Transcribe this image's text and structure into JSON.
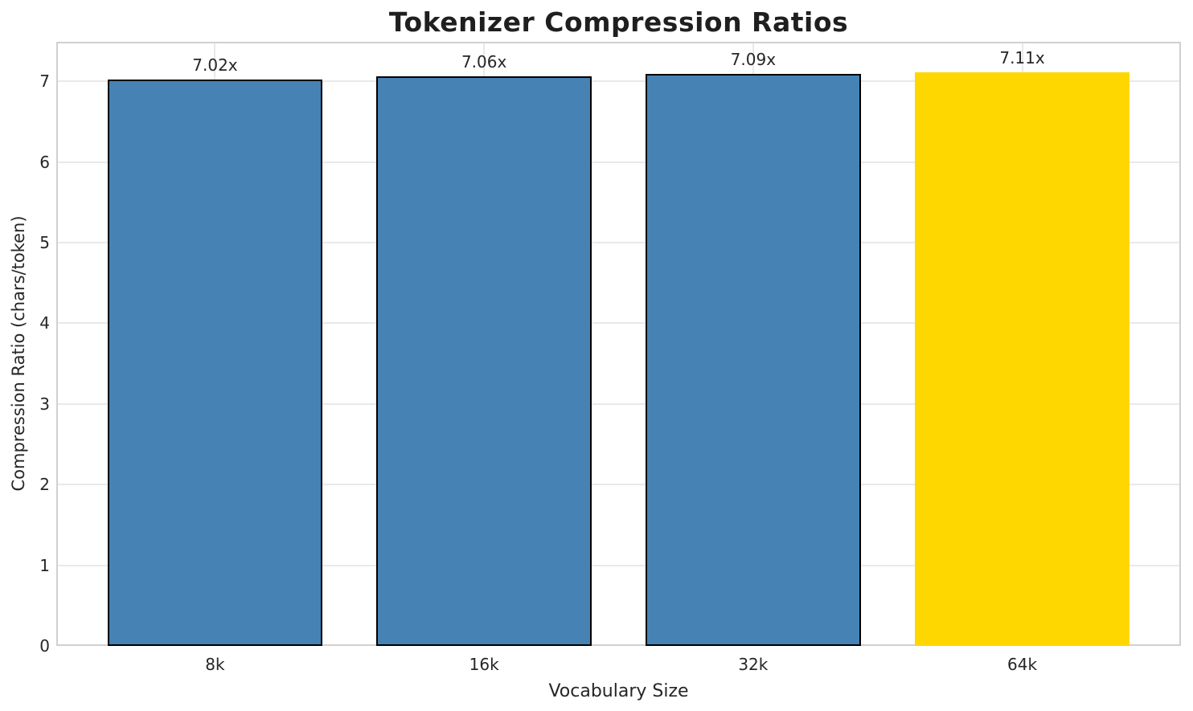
{
  "chart_data": {
    "type": "bar",
    "title": "Tokenizer Compression Ratios",
    "xlabel": "Vocabulary Size",
    "ylabel": "Compression Ratio (chars/token)",
    "categories": [
      "8k",
      "16k",
      "32k",
      "64k"
    ],
    "values": [
      7.02,
      7.06,
      7.09,
      7.11
    ],
    "bar_labels": [
      "7.02x",
      "7.06x",
      "7.09x",
      "7.11x"
    ],
    "yticks": [
      0,
      1,
      2,
      3,
      4,
      5,
      6,
      7
    ],
    "ylim": [
      0,
      7.49
    ],
    "xlim": [
      -0.59,
      3.59
    ],
    "bar_width_data_units": 0.8,
    "grid": true,
    "legend": "none",
    "colors": {
      "base_bar": "#4682B4",
      "highlight_bar": "#FFD700",
      "bar_edge": "#000000",
      "grid": "#e9e9e9",
      "spine": "#d0d0d0",
      "text": "#262626",
      "title_text": "#1f1f1f"
    },
    "bar_colors": [
      "#4682B4",
      "#4682B4",
      "#4682B4",
      "#FFD700"
    ],
    "bar_edges": [
      "#000000",
      "#000000",
      "#000000",
      "none"
    ]
  }
}
